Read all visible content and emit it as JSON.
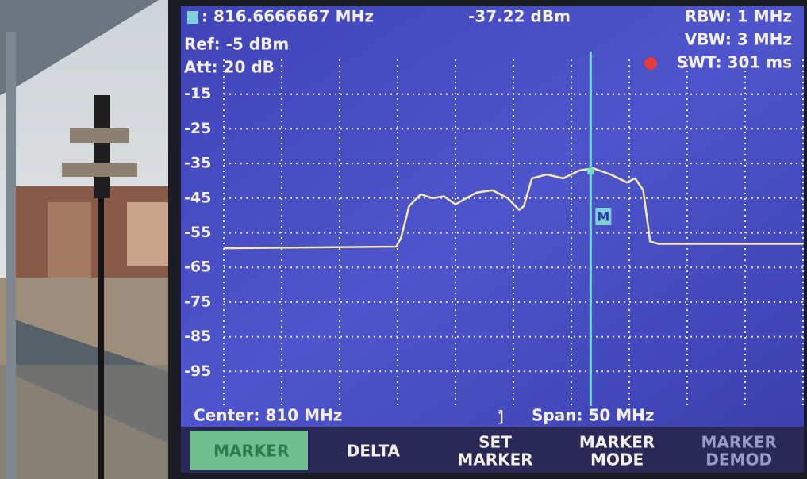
{
  "chart_data": {
    "type": "line",
    "marker": {
      "label": "M",
      "x": 816.6666667,
      "x_label": ": 816.6666667 MHz",
      "y": -37.22,
      "y_label": "-37.22 dBm"
    },
    "settings_left": [
      "Ref: -5 dBm",
      "Att: 20 dB"
    ],
    "settings_right": [
      "RBW: 1 MHz",
      "VBW: 3 MHz",
      "SWT: 301 ms"
    ],
    "center": "Center: 810 MHz",
    "span": "Span: 50 MHz",
    "softkeys": [
      [
        "MARKER"
      ],
      [
        "DELTA"
      ],
      [
        "SET",
        "MARKER"
      ],
      [
        "MARKER",
        "MODE"
      ],
      [
        "MARKER",
        "DEMOD"
      ]
    ],
    "x": [
      785,
      799.9,
      800.3,
      801,
      802,
      803,
      804,
      805,
      806.8,
      808.2,
      809.5,
      810.5,
      810.9,
      811.6,
      812.9,
      814.3,
      815.7,
      816.9,
      818.4,
      819.8,
      820.5,
      821.2,
      821.8,
      822.5,
      835
    ],
    "values": [
      -59.5,
      -59,
      -56.4,
      -47.3,
      -43.9,
      -45,
      -44.5,
      -46.8,
      -43.4,
      -42.7,
      -45,
      -48.4,
      -47.3,
      -39.3,
      -38.2,
      -39.3,
      -37,
      -36.4,
      -38.2,
      -40.5,
      -39.3,
      -42.7,
      -57.5,
      -58.2,
      -58.2
    ],
    "color": "#f3e9a8",
    "xlim": [
      785,
      835
    ],
    "ylim": [
      -105,
      -5
    ],
    "yticks": [
      -15,
      -25,
      -35,
      -45,
      -55,
      -65,
      -75,
      -85,
      -95
    ],
    "grid": true
  }
}
